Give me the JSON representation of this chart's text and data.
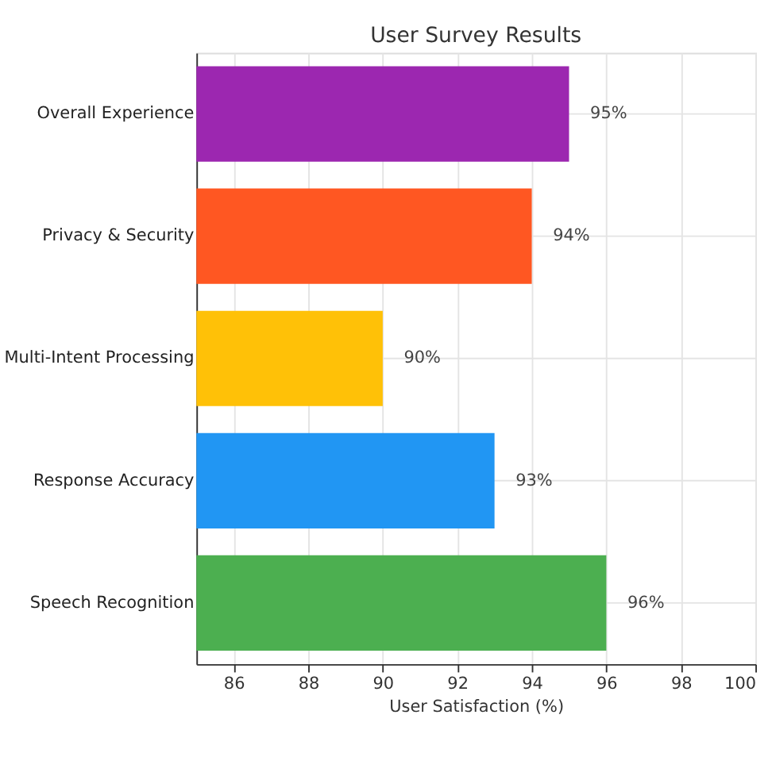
{
  "chart_data": {
    "type": "bar",
    "orientation": "horizontal",
    "title": "User Survey Results",
    "xlabel": "User Satisfaction (%)",
    "categories": [
      "Overall Experience",
      "Privacy & Security",
      "Multi-Intent Processing",
      "Response Accuracy",
      "Speech Recognition"
    ],
    "values": [
      95,
      94,
      90,
      93,
      96
    ],
    "colors": [
      "#9c27b0",
      "#ff5722",
      "#ffc107",
      "#2196f3",
      "#4caf50"
    ],
    "value_labels": [
      "95%",
      "94%",
      "90%",
      "93%",
      "96%"
    ],
    "xlim": [
      85,
      100
    ],
    "xticks": [
      86,
      88,
      90,
      92,
      94,
      96,
      98,
      100
    ],
    "grid": true,
    "legend": false
  }
}
